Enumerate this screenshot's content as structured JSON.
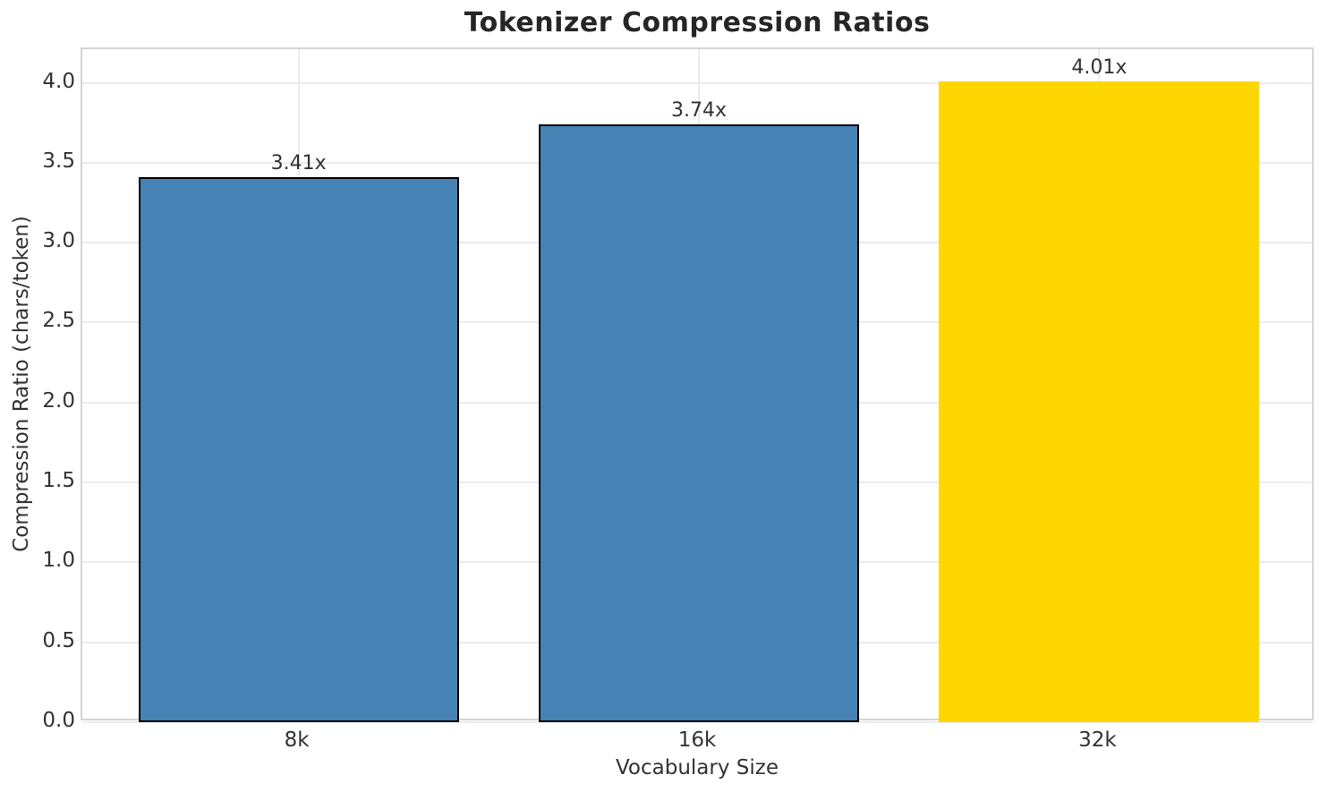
{
  "chart_data": {
    "type": "bar",
    "title": "Tokenizer Compression Ratios",
    "xlabel": "Vocabulary Size",
    "ylabel": "Compression Ratio (chars/token)",
    "categories": [
      "8k",
      "16k",
      "32k"
    ],
    "values": [
      3.41,
      3.74,
      4.01
    ],
    "value_labels": [
      "3.41x",
      "3.74x",
      "4.01x"
    ],
    "series": [
      {
        "name": "compression_ratio",
        "values": [
          3.41,
          3.74,
          4.01
        ]
      }
    ],
    "bar_colors": [
      "#4682B4",
      "#4682B4",
      "#FFD700"
    ],
    "bar_edge_colors": [
      "#000000",
      "#000000",
      "none"
    ],
    "highlight_index": 2,
    "ylim": [
      0,
      4.21
    ],
    "yticks": [
      0.0,
      0.5,
      1.0,
      1.5,
      2.0,
      2.5,
      3.0,
      3.5,
      4.0
    ],
    "ytick_labels": [
      "0.0",
      "0.5",
      "1.0",
      "1.5",
      "2.0",
      "2.5",
      "3.0",
      "3.5",
      "4.0"
    ],
    "grid": true,
    "legend": "none",
    "colors": {
      "bar_blue": "#4682B4",
      "bar_gold": "#FFD700",
      "bar_edge": "#000000",
      "grid": "#ececec",
      "spine": "#d4d4d4",
      "text": "#333333",
      "title_text": "#262626",
      "background": "#ffffff"
    }
  }
}
